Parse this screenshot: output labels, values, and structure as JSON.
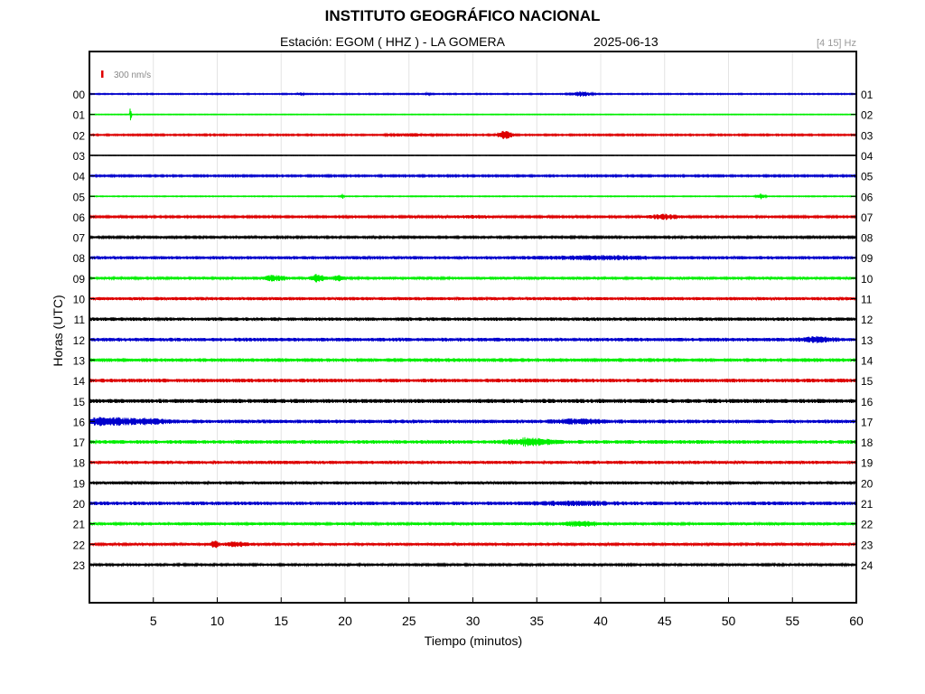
{
  "header": {
    "title": "INSTITUTO GEOGRÁFICO NACIONAL",
    "station": "Estación:  EGOM ( HHZ ) - LA GOMERA",
    "date": "2025-06-13",
    "filter": "[4 15] Hz",
    "scale_label": "300 nm/s"
  },
  "colors": {
    "scale_bar": "#e00000",
    "cycle": [
      "#0000cc",
      "#00ee00",
      "#dd0000",
      "#000000"
    ]
  },
  "chart_data": {
    "type": "line",
    "title": "INSTITUTO GEOGRÁFICO NACIONAL",
    "xlabel": "Tiempo (minutos)",
    "ylabel": "Horas (UTC)",
    "xlim": [
      0,
      60
    ],
    "x_ticks": [
      "5",
      "10",
      "15",
      "20",
      "25",
      "30",
      "35",
      "40",
      "45",
      "50",
      "55",
      "60"
    ],
    "left_tick_labels": [
      "00",
      "01",
      "02",
      "03",
      "04",
      "05",
      "06",
      "07",
      "08",
      "09",
      "10",
      "11",
      "12",
      "13",
      "14",
      "15",
      "16",
      "17",
      "18",
      "19",
      "20",
      "21",
      "22",
      "23"
    ],
    "right_tick_labels": [
      "01",
      "02",
      "03",
      "04",
      "05",
      "06",
      "07",
      "08",
      "09",
      "10",
      "11",
      "12",
      "13",
      "14",
      "15",
      "16",
      "17",
      "18",
      "19",
      "20",
      "21",
      "22",
      "23",
      "24"
    ],
    "grid": true,
    "traces": [
      {
        "hour": "00",
        "noise": 0.6,
        "events": [
          [
            16.5,
            0.2,
            1.5
          ],
          [
            26.5,
            0.2,
            1.2
          ],
          [
            38.5,
            0.7,
            2.5
          ]
        ]
      },
      {
        "hour": "01",
        "noise": 0.4,
        "events": [
          [
            3.2,
            0.05,
            14
          ]
        ]
      },
      {
        "hour": "02",
        "noise": 0.8,
        "events": [
          [
            25,
            1.5,
            1.3
          ],
          [
            32.5,
            0.6,
            4
          ]
        ]
      },
      {
        "hour": "03",
        "noise": 0.3,
        "events": []
      },
      {
        "hour": "04",
        "noise": 0.9,
        "events": []
      },
      {
        "hour": "05",
        "noise": 0.5,
        "events": [
          [
            19.8,
            0.1,
            2.5
          ],
          [
            52.5,
            0.3,
            3
          ]
        ]
      },
      {
        "hour": "06",
        "noise": 1.0,
        "events": [
          [
            30,
            1.5,
            1.3
          ],
          [
            45,
            1.2,
            2.5
          ]
        ]
      },
      {
        "hour": "07",
        "noise": 1.2,
        "events": []
      },
      {
        "hour": "08",
        "noise": 1.8,
        "events": [
          [
            40,
            4,
            1.2
          ]
        ]
      },
      {
        "hour": "09",
        "noise": 1.5,
        "events": [
          [
            14.5,
            0.8,
            2.5
          ],
          [
            17.8,
            0.5,
            4
          ],
          [
            19.5,
            0.4,
            3
          ]
        ]
      },
      {
        "hour": "10",
        "noise": 1.8,
        "events": []
      },
      {
        "hour": "11",
        "noise": 1.9,
        "events": []
      },
      {
        "hour": "12",
        "noise": 2.0,
        "events": [
          [
            57,
            1.2,
            2
          ]
        ]
      },
      {
        "hour": "13",
        "noise": 2.1,
        "events": []
      },
      {
        "hour": "14",
        "noise": 2.1,
        "events": []
      },
      {
        "hour": "15",
        "noise": 2.3,
        "events": []
      },
      {
        "hour": "16",
        "noise": 2.0,
        "events": [
          [
            1.2,
            1.8,
            3.5
          ],
          [
            4.5,
            1.5,
            2
          ],
          [
            38.5,
            2,
            1.5
          ]
        ]
      },
      {
        "hour": "17",
        "noise": 2.0,
        "events": [
          [
            34.5,
            1.5,
            3.5
          ]
        ]
      },
      {
        "hour": "18",
        "noise": 1.8,
        "events": []
      },
      {
        "hour": "19",
        "noise": 1.7,
        "events": []
      },
      {
        "hour": "20",
        "noise": 2.0,
        "events": [
          [
            38,
            3,
            1.2
          ]
        ]
      },
      {
        "hour": "21",
        "noise": 1.5,
        "events": [
          [
            38.5,
            1.2,
            2.5
          ]
        ]
      },
      {
        "hour": "22",
        "noise": 1.4,
        "events": [
          [
            9.8,
            0.3,
            4
          ],
          [
            11.5,
            0.8,
            2
          ]
        ]
      },
      {
        "hour": "23",
        "noise": 1.3,
        "events": []
      }
    ]
  }
}
